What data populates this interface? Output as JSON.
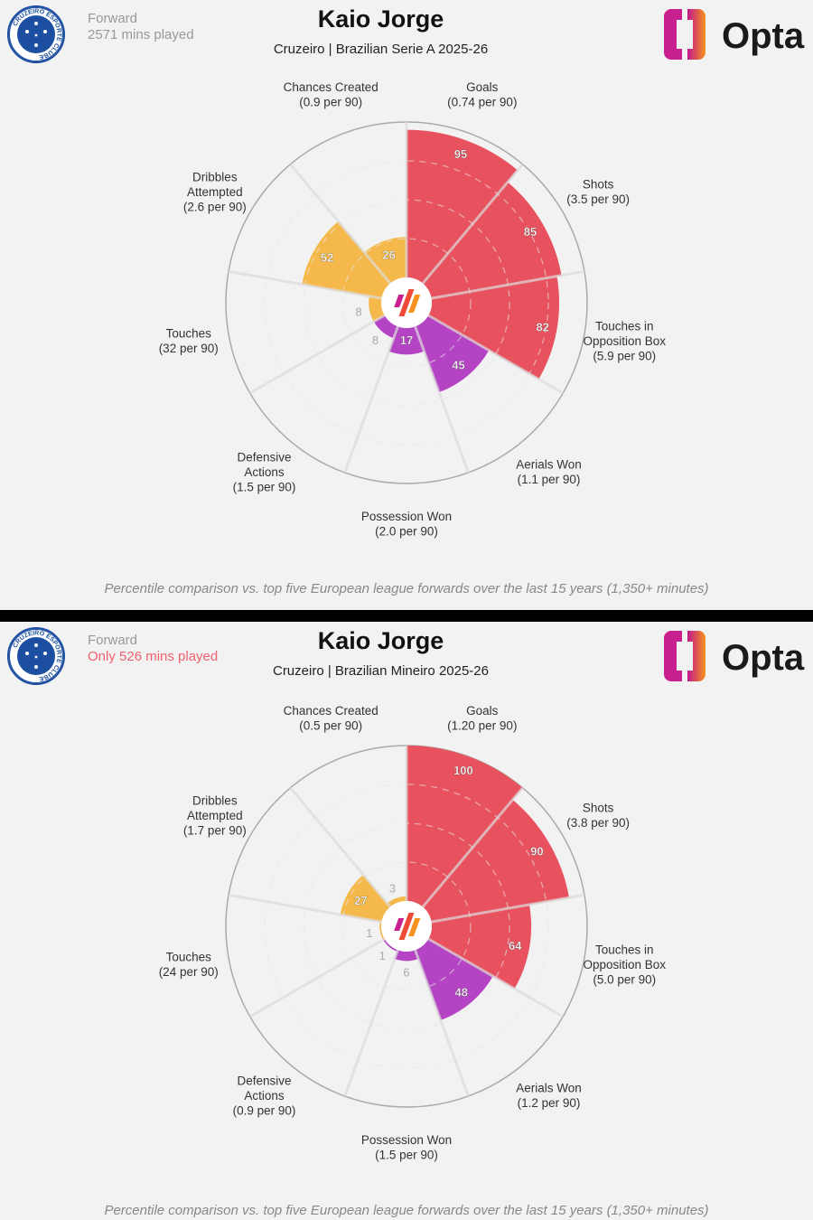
{
  "colors": {
    "attacking": "#e8525f",
    "possession": "#f5b94b",
    "defending": "#b444c4",
    "background": "#f2f2f2"
  },
  "brand": {
    "logo_text": "Opta",
    "club_logo_text": "CRUZEIRO ESPORTE CLUBE"
  },
  "panels": [
    {
      "player": "Kaio Jorge",
      "position": "Forward",
      "minutes": "2571 mins played",
      "minutes_warning": false,
      "subtitle": "Cruzeiro | Brazilian Serie A 2025-26",
      "footnote": "Percentile comparison vs. top five European league forwards over the last 15 years (1,350+ minutes)"
    },
    {
      "player": "Kaio Jorge",
      "position": "Forward",
      "minutes": "Only 526 mins played",
      "minutes_warning": true,
      "subtitle": "Cruzeiro | Brazilian Mineiro 2025-26",
      "footnote": "Percentile comparison vs. top five European league forwards over the last 15 years (1,350+ minutes)"
    }
  ],
  "chart_data": [
    {
      "type": "pie",
      "subtype": "pizza-percentile",
      "scale": [
        0,
        100
      ],
      "categories": [
        "Goals",
        "Shots",
        "Touches in Opposition Box",
        "Aerials Won",
        "Possession Won",
        "Defensive Actions",
        "Touches",
        "Dribbles Attempted",
        "Chances Created"
      ],
      "groups": [
        "attacking",
        "attacking",
        "attacking",
        "defending",
        "defending",
        "defending",
        "possession",
        "possession",
        "possession"
      ],
      "per90": [
        "(0.74 per 90)",
        "(3.5 per 90)",
        "(5.9 per 90)",
        "(1.1 per 90)",
        "(2.0 per 90)",
        "(1.5 per 90)",
        "(32 per 90)",
        "(2.6 per 90)",
        "(0.9 per 90)"
      ],
      "values": [
        95,
        85,
        82,
        45,
        17,
        8,
        8,
        52,
        26
      ]
    },
    {
      "type": "pie",
      "subtype": "pizza-percentile",
      "scale": [
        0,
        100
      ],
      "categories": [
        "Goals",
        "Shots",
        "Touches in Opposition Box",
        "Aerials Won",
        "Possession Won",
        "Defensive Actions",
        "Touches",
        "Dribbles Attempted",
        "Chances Created"
      ],
      "groups": [
        "attacking",
        "attacking",
        "attacking",
        "defending",
        "defending",
        "defending",
        "possession",
        "possession",
        "possession"
      ],
      "per90": [
        "(1.20 per 90)",
        "(3.8 per 90)",
        "(5.0 per 90)",
        "(1.2 per 90)",
        "(1.5 per 90)",
        "(0.9 per 90)",
        "(24 per 90)",
        "(1.7 per 90)",
        "(0.5 per 90)"
      ],
      "values": [
        100,
        90,
        64,
        48,
        6,
        1,
        1,
        27,
        3
      ]
    }
  ]
}
